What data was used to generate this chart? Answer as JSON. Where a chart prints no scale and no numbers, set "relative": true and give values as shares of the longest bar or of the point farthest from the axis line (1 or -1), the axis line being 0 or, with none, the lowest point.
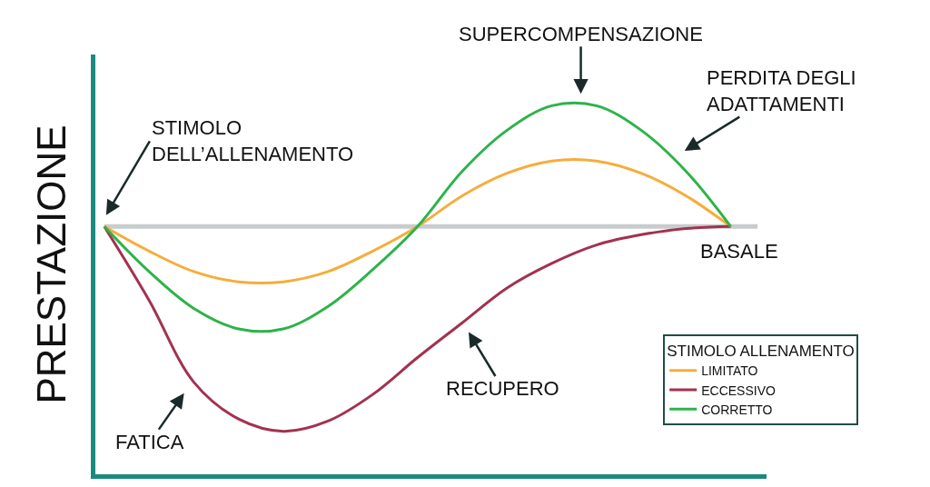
{
  "chart_data": {
    "type": "line",
    "relative": true,
    "ylabel": "PRESTAZIONE",
    "legend_title": "STIMOLO ALLENAMENTO",
    "legend": "bottom right",
    "grid": false,
    "marker": "none",
    "line_style": "solid",
    "categories": [
      null,
      null,
      null,
      null,
      null,
      null,
      null,
      null,
      null,
      null,
      null,
      null,
      null,
      null,
      null
    ],
    "series": [
      {
        "name": "LIMITATO",
        "color": "#f6ad3c",
        "values": [
          0,
          -0.12,
          -0.22,
          -0.27,
          -0.27,
          -0.22,
          -0.12,
          0,
          0.15,
          0.26,
          0.32,
          0.32,
          0.26,
          0.15,
          0
        ]
      },
      {
        "name": "ECCESSIVO",
        "color": "#a2324f",
        "values": [
          0,
          -0.36,
          -0.76,
          -0.94,
          -1,
          -0.95,
          -0.82,
          -0.64,
          -0.47,
          -0.3,
          -0.18,
          -0.09,
          -0.04,
          -0.01,
          0
        ]
      },
      {
        "name": "CORRETTO",
        "color": "#2db34a",
        "values": [
          0,
          -0.22,
          -0.4,
          -0.5,
          -0.5,
          -0.39,
          -0.21,
          0,
          0.27,
          0.47,
          0.59,
          0.59,
          0.47,
          0.27,
          0
        ]
      }
    ],
    "ref_lines": [
      {
        "axis": "y",
        "value": 0,
        "color": "#c8cccc"
      }
    ],
    "annotations": [
      "SUPERCOMPENSAZIONE",
      "PERDITA DEGLI\nADATTAMENTI",
      "STIMOLO\nDELL’ALLENAMENTO",
      "BASALE",
      "FATICA",
      "RECUPERO"
    ]
  }
}
